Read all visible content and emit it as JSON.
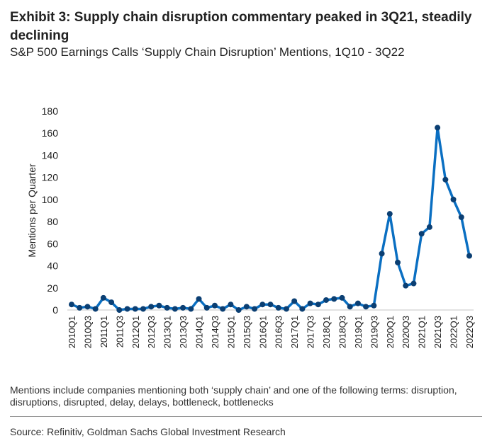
{
  "header": {
    "title": "Exhibit 3: Supply chain disruption commentary peaked in 3Q21, steadily declining",
    "subtitle": "S&P 500 Earnings Calls ‘Supply Chain Disruption’ Mentions, 1Q10 - 3Q22"
  },
  "footer": {
    "note": "Mentions include companies mentioning both ‘supply chain’ and one of the following terms: disruption, disruptions, disrupted, delay, delays, bottleneck, bottlenecks",
    "source": "Source: Refinitiv, Goldman Sachs Global Investment Research"
  },
  "chart_data": {
    "type": "line",
    "title": "",
    "xlabel": "",
    "ylabel": "Mentions per Quarter",
    "ylim": [
      0,
      180
    ],
    "yticks": [
      0,
      20,
      40,
      60,
      80,
      100,
      120,
      140,
      160,
      180
    ],
    "grid": false,
    "line_color": "#0a6fc2",
    "marker_color": "#0b3f73",
    "x": [
      "2010Q1",
      "2010Q2",
      "2010Q3",
      "2010Q4",
      "2011Q1",
      "2011Q2",
      "2011Q3",
      "2011Q4",
      "2012Q1",
      "2012Q2",
      "2012Q3",
      "2012Q4",
      "2013Q1",
      "2013Q2",
      "2013Q3",
      "2013Q4",
      "2014Q1",
      "2014Q2",
      "2014Q3",
      "2014Q4",
      "2015Q1",
      "2015Q2",
      "2015Q3",
      "2015Q4",
      "2016Q1",
      "2016Q2",
      "2016Q3",
      "2016Q4",
      "2017Q1",
      "2017Q2",
      "2017Q3",
      "2017Q4",
      "2018Q1",
      "2018Q2",
      "2018Q3",
      "2018Q4",
      "2019Q1",
      "2019Q2",
      "2019Q3",
      "2019Q4",
      "2020Q1",
      "2020Q2",
      "2020Q3",
      "2020Q4",
      "2021Q1",
      "2021Q2",
      "2021Q3",
      "2021Q4",
      "2022Q1",
      "2022Q2",
      "2022Q3"
    ],
    "values": [
      5,
      2,
      3,
      1,
      11,
      7,
      0,
      1,
      1,
      1,
      3,
      4,
      2,
      1,
      2,
      1,
      10,
      2,
      4,
      1,
      5,
      0,
      3,
      1,
      5,
      5,
      2,
      1,
      8,
      1,
      6,
      5,
      9,
      10,
      11,
      3,
      6,
      3,
      4,
      51,
      87,
      43,
      22,
      24,
      69,
      75,
      165,
      118,
      100,
      84,
      49
    ]
  }
}
